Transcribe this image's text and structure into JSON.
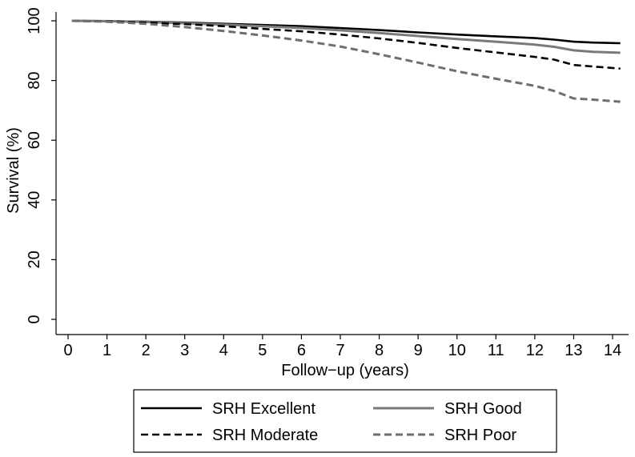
{
  "chart_data": {
    "type": "line",
    "title": "",
    "xlabel": "Follow−up (years)",
    "ylabel": "Survival (%)",
    "xlim": [
      0,
      14
    ],
    "ylim": [
      0,
      100
    ],
    "x_ticks": [
      0,
      1,
      2,
      3,
      4,
      5,
      6,
      7,
      8,
      9,
      10,
      11,
      12,
      13,
      14
    ],
    "y_ticks": [
      0,
      20,
      40,
      60,
      80,
      100
    ],
    "x_tick_labels": [
      "0",
      "1",
      "2",
      "3",
      "4",
      "5",
      "6",
      "7",
      "8",
      "9",
      "10",
      "11",
      "12",
      "13",
      "14"
    ],
    "y_tick_labels": [
      "0",
      "20",
      "40",
      "60",
      "80",
      "100"
    ],
    "grid": false,
    "legend_position": "bottom",
    "series": [
      {
        "name": "SRH Excellent",
        "color": "#000000",
        "style": "solid",
        "x": [
          0.1,
          1,
          2,
          3,
          4,
          5,
          6,
          7,
          8,
          9,
          10,
          11,
          12,
          12.5,
          13,
          13.5,
          14.2
        ],
        "y": [
          100,
          99.9,
          99.7,
          99.4,
          99.0,
          98.6,
          98.2,
          97.6,
          96.9,
          96.1,
          95.4,
          94.8,
          94.2,
          93.7,
          93.0,
          92.7,
          92.5
        ]
      },
      {
        "name": "SRH Good",
        "color": "#7a7a7a",
        "style": "solid",
        "x": [
          0.1,
          1,
          2,
          3,
          4,
          5,
          6,
          7,
          8,
          9,
          10,
          11,
          12,
          12.5,
          13,
          13.5,
          14.2
        ],
        "y": [
          100,
          99.9,
          99.6,
          99.2,
          98.7,
          98.2,
          97.6,
          96.8,
          95.9,
          94.9,
          93.9,
          93.0,
          92.0,
          91.3,
          90.1,
          89.6,
          89.3
        ]
      },
      {
        "name": "SRH Moderate",
        "color": "#000000",
        "style": "dashed",
        "x": [
          0.1,
          1,
          2,
          3,
          4,
          5,
          6,
          7,
          8,
          9,
          10,
          11,
          12,
          12.5,
          13,
          13.5,
          14.2
        ],
        "y": [
          100,
          99.8,
          99.4,
          98.9,
          98.2,
          97.3,
          96.5,
          95.4,
          94.1,
          92.6,
          90.9,
          89.4,
          87.9,
          87.0,
          85.2,
          84.7,
          84.0
        ]
      },
      {
        "name": "SRH Poor",
        "color": "#6e6e6e",
        "style": "dashed",
        "x": [
          0.1,
          1,
          2,
          3,
          4,
          5,
          6,
          7,
          8,
          9,
          10,
          11,
          12,
          12.5,
          13,
          13.5,
          14.2
        ],
        "y": [
          100,
          99.7,
          99.0,
          97.9,
          96.6,
          95.1,
          93.4,
          91.4,
          88.8,
          86.0,
          83.1,
          80.6,
          78.2,
          76.5,
          74.0,
          73.6,
          72.9
        ]
      }
    ]
  }
}
